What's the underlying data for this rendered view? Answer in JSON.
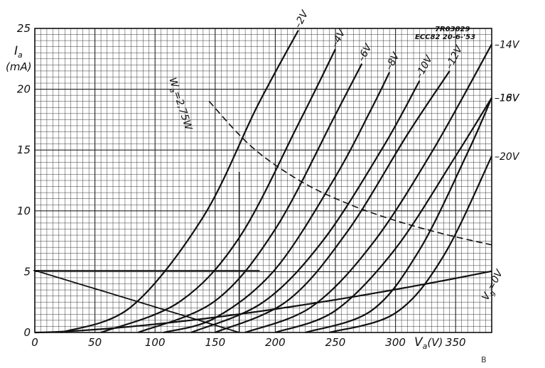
{
  "chart_data": {
    "type": "line",
    "title": "",
    "reference": "7R03829",
    "tube_note": "ECC82 20-6-'53",
    "corner_mark": "B",
    "xlabel_parts": {
      "main": "V",
      "sub": "a",
      "unit": "(V)"
    },
    "ylabel_parts": {
      "main": "I",
      "sub": "a",
      "unit": "(mA)"
    },
    "xlim": [
      0,
      380
    ],
    "ylim": [
      0,
      25
    ],
    "x_ticks": [
      {
        "value": 0,
        "label": "0"
      },
      {
        "value": 50,
        "label": "50"
      },
      {
        "value": 100,
        "label": "100"
      },
      {
        "value": 150,
        "label": "150"
      },
      {
        "value": 200,
        "label": "200"
      },
      {
        "value": 250,
        "label": "250"
      },
      {
        "value": 300,
        "label": "300"
      },
      {
        "value": 350,
        "label": "350"
      }
    ],
    "y_ticks": [
      {
        "value": 0,
        "label": "0"
      },
      {
        "value": 5,
        "label": "5"
      },
      {
        "value": 10,
        "label": "10"
      },
      {
        "value": 15,
        "label": "15"
      },
      {
        "value": 20,
        "label": "20"
      },
      {
        "value": 25,
        "label": "25"
      }
    ],
    "grid": "minor 5 V × 0.5 mA, major 50 V × 5 mA",
    "series": [
      {
        "name": "Vg=0V",
        "label_parts": {
          "main": "V",
          "sub": "g",
          "rest": "=0V"
        },
        "curve_k": 0.0006806,
        "curve_v0": 0,
        "x": [
          0,
          60,
          120,
          160,
          185
        ],
        "y": [
          0,
          2.45,
          9.8,
          17.4,
          23.3
        ]
      },
      {
        "name": "-2V",
        "x": [
          22,
          80,
          140,
          185,
          220
        ],
        "y": [
          0,
          2.1,
          9.5,
          18.6,
          25
        ]
      },
      {
        "name": "-4V",
        "x": [
          55,
          120,
          170,
          220,
          250
        ],
        "y": [
          0,
          2.5,
          7.8,
          17.3,
          23.3
        ]
      },
      {
        "name": "-6V",
        "x": [
          86,
          150,
          200,
          250,
          272
        ],
        "y": [
          0,
          2.6,
          8.5,
          17.9,
          22.1
        ]
      },
      {
        "name": "-8V",
        "x": [
          107,
          150,
          200,
          250,
          280,
          295
        ],
        "y": [
          0,
          1.2,
          5.2,
          12.8,
          18.4,
          21.4
        ]
      },
      {
        "name": "-10V",
        "x": [
          130,
          190,
          240,
          290,
          320
        ],
        "y": [
          0,
          2.5,
          7.6,
          15.3,
          20.7
        ]
      },
      {
        "name": "-12V",
        "x": [
          150,
          210,
          260,
          310,
          345
        ],
        "y": [
          0,
          2.6,
          8.3,
          16.3,
          21.5
        ]
      },
      {
        "name": "-14V",
        "x": [
          175,
          230,
          280,
          330,
          380
        ],
        "y": [
          0,
          2.1,
          7.2,
          14.8,
          23.7
        ]
      },
      {
        "name": "-16V",
        "x": [
          200,
          250,
          300,
          350,
          380
        ],
        "y": [
          0,
          1.8,
          6.9,
          14.5,
          19.3
        ]
      },
      {
        "name": "-18V",
        "x": [
          225,
          280,
          320,
          360,
          380
        ],
        "y": [
          0,
          1.8,
          6.8,
          14.8,
          19.3
        ]
      },
      {
        "name": "-20V",
        "x": [
          245,
          300,
          340,
          380
        ],
        "y": [
          0,
          1.6,
          6.3,
          14.5
        ]
      }
    ],
    "max_dissipation": {
      "name": "Wa=2,75W",
      "label_parts": {
        "main": "W",
        "sub": "a",
        "rest": "=2,75W"
      },
      "watts": 2.75,
      "x": [
        145,
        180,
        220,
        260,
        300,
        340,
        380
      ],
      "y": [
        19,
        15.3,
        12.5,
        10.6,
        9.2,
        8.1,
        7.2
      ]
    },
    "load_line": {
      "x": [
        0,
        170
      ],
      "y": [
        5.1,
        0
      ]
    },
    "operating_point": {
      "x": 170,
      "y": 5.1
    }
  }
}
